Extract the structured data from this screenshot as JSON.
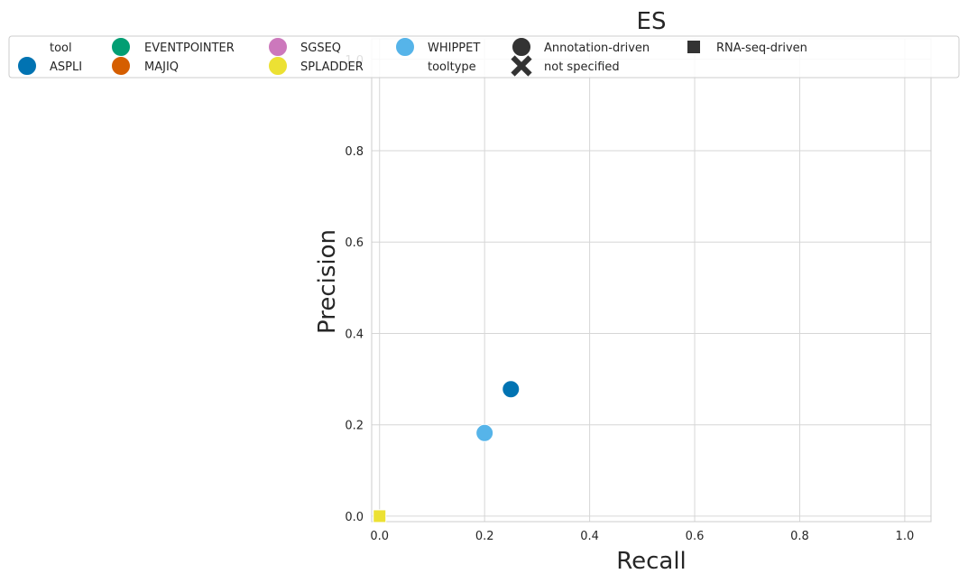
{
  "chart_data": {
    "type": "scatter",
    "title": "ES",
    "xlabel": "Recall",
    "ylabel": "Precision",
    "xlim": [
      -0.015,
      1.05
    ],
    "ylim": [
      -0.012,
      1.045
    ],
    "xticks": [
      0.0,
      0.2,
      0.4,
      0.6,
      0.8,
      1.0
    ],
    "yticks": [
      0.0,
      0.2,
      0.4,
      0.6,
      0.8,
      1.0
    ],
    "xtick_labels": [
      "0.0",
      "0.2",
      "0.4",
      "0.6",
      "0.8",
      "1.0"
    ],
    "ytick_labels": [
      "0.0",
      "0.2",
      "0.4",
      "0.6",
      "0.8",
      "1.0"
    ],
    "grid": true,
    "legend_position": "top",
    "legend": {
      "tool_header": "tool",
      "tooltype_header": "tooltype",
      "tools": [
        {
          "name": "ASPLI",
          "color": "#0173b2"
        },
        {
          "name": "EVENTPOINTER",
          "color": "#029e73"
        },
        {
          "name": "MAJIQ",
          "color": "#d55e00"
        },
        {
          "name": "SGSEQ",
          "color": "#cc78bc"
        },
        {
          "name": "SPLADDER",
          "color": "#ece133"
        },
        {
          "name": "WHIPPET",
          "color": "#56b4e9"
        }
      ],
      "tooltypes": [
        {
          "name": "Annotation-driven",
          "marker": "circle"
        },
        {
          "name": "not specified",
          "marker": "x"
        },
        {
          "name": "RNA-seq-driven",
          "marker": "square"
        }
      ]
    },
    "series": [
      {
        "tool": "ASPLI",
        "tooltype": "Annotation-driven",
        "x": 0.25,
        "y": 0.278
      },
      {
        "tool": "WHIPPET",
        "tooltype": "Annotation-driven",
        "x": 0.2,
        "y": 0.182
      },
      {
        "tool": "SPLADDER",
        "tooltype": "RNA-seq-driven",
        "x": 0.0,
        "y": 0.0
      }
    ]
  }
}
